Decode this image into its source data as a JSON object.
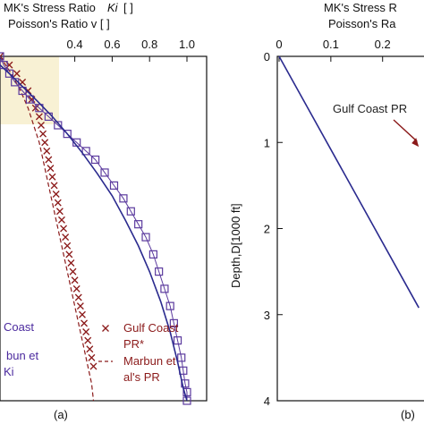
{
  "chart_data": [
    {
      "type": "line",
      "panel_label": "(a)",
      "title_lines": [
        "MK's Stress Ratio",
        "Ki",
        "[ ]",
        "Poisson's Ratio v [ ]"
      ],
      "x_ticks": [
        "0.4",
        "0.6",
        "0.8",
        "1.0"
      ],
      "x_tick_values": [
        0.4,
        0.6,
        0.8,
        1.0
      ],
      "xlim": [
        0.0,
        1.0
      ],
      "ylim": [
        0,
        4
      ],
      "grid": false,
      "series": [
        {
          "name": "Gulf Coast PR*",
          "color": "#8b1a1a",
          "marker": "x",
          "x": [
            0.0,
            0.05,
            0.09,
            0.12,
            0.15,
            0.17,
            0.19,
            0.21,
            0.22,
            0.23,
            0.24,
            0.25,
            0.26,
            0.27,
            0.28,
            0.29,
            0.3,
            0.31,
            0.32,
            0.33,
            0.34,
            0.35,
            0.36,
            0.37,
            0.38,
            0.39,
            0.4,
            0.41,
            0.42,
            0.43,
            0.44,
            0.45,
            0.46,
            0.47,
            0.48,
            0.49,
            0.5
          ],
          "y": [
            0.0,
            0.1,
            0.2,
            0.3,
            0.4,
            0.5,
            0.6,
            0.7,
            0.8,
            0.9,
            1.0,
            1.1,
            1.2,
            1.3,
            1.4,
            1.5,
            1.6,
            1.7,
            1.8,
            1.9,
            2.0,
            2.1,
            2.2,
            2.3,
            2.4,
            2.5,
            2.6,
            2.7,
            2.8,
            2.9,
            3.0,
            3.1,
            3.2,
            3.3,
            3.4,
            3.5,
            3.6
          ]
        },
        {
          "name": "Marbun et al's PR",
          "color": "#8b1a1a",
          "marker": "dash",
          "x": [
            0.0,
            0.06,
            0.11,
            0.15,
            0.18,
            0.21,
            0.23,
            0.25,
            0.27,
            0.29,
            0.31,
            0.33,
            0.35,
            0.37,
            0.39,
            0.41,
            0.43,
            0.45,
            0.47,
            0.49,
            0.5
          ],
          "y": [
            0.0,
            0.2,
            0.4,
            0.6,
            0.8,
            1.0,
            1.2,
            1.4,
            1.6,
            1.8,
            2.0,
            2.2,
            2.4,
            2.6,
            2.8,
            3.0,
            3.2,
            3.4,
            3.6,
            3.8,
            4.0
          ]
        },
        {
          "name": "Coast",
          "color": "#5b3a9e",
          "marker": "square",
          "x": [
            0.0,
            0.02,
            0.05,
            0.08,
            0.12,
            0.16,
            0.21,
            0.26,
            0.31,
            0.36,
            0.41,
            0.46,
            0.51,
            0.56,
            0.61,
            0.66,
            0.7,
            0.74,
            0.78,
            0.82,
            0.85,
            0.88,
            0.91,
            0.93,
            0.95,
            0.97,
            0.98,
            0.99,
            1.0,
            1.0
          ],
          "y": [
            0.0,
            0.1,
            0.2,
            0.3,
            0.4,
            0.5,
            0.6,
            0.7,
            0.8,
            0.9,
            1.0,
            1.1,
            1.2,
            1.35,
            1.5,
            1.65,
            1.8,
            1.95,
            2.1,
            2.3,
            2.5,
            2.7,
            2.9,
            3.1,
            3.3,
            3.5,
            3.65,
            3.8,
            3.9,
            4.0
          ]
        },
        {
          "name": "Marbun et al's Ki",
          "color": "#2a2a8e",
          "marker": "none",
          "x": [
            0.0,
            0.05,
            0.12,
            0.2,
            0.28,
            0.36,
            0.44,
            0.52,
            0.6,
            0.67,
            0.74,
            0.8,
            0.86,
            0.91,
            0.95,
            0.98,
            1.0
          ],
          "y": [
            0.1,
            0.2,
            0.35,
            0.52,
            0.7,
            0.9,
            1.12,
            1.36,
            1.62,
            1.9,
            2.2,
            2.5,
            2.85,
            3.2,
            3.55,
            3.85,
            4.0
          ]
        }
      ],
      "legend": [
        {
          "text": "Coast",
          "color": "#4b2a9e",
          "marker": "square"
        },
        {
          "text": "bun et",
          "color": "#4b2a9e",
          "marker": "none"
        },
        {
          "text": "Ki",
          "color": "#4b2a9e",
          "marker": "line"
        },
        {
          "text": "Gulf Coast",
          "color": "#8b1a1a",
          "marker": "x"
        },
        {
          "text": "PR*",
          "color": "#8b1a1a",
          "marker": "none"
        },
        {
          "text": "Marbun et",
          "color": "#8b1a1a",
          "marker": "dash"
        },
        {
          "text": "al's PR",
          "color": "#8b1a1a",
          "marker": "none"
        }
      ]
    },
    {
      "type": "line",
      "panel_label": "(b)",
      "title_lines": [
        "MK's Stress R",
        "Poisson's Ra"
      ],
      "x_ticks": [
        "0",
        "0.1",
        "0.2"
      ],
      "x_tick_values": [
        0.0,
        0.1,
        0.2
      ],
      "y_ticks": [
        "0",
        "1",
        "2",
        "3",
        "4"
      ],
      "y_tick_values": [
        0,
        1,
        2,
        3,
        4
      ],
      "ylabel": "Depth,D[1000 ft]",
      "xlim": [
        0.0,
        0.28
      ],
      "ylim": [
        0,
        4
      ],
      "grid": false,
      "series": [
        {
          "name": "",
          "color": "#2a2a8e",
          "marker": "none",
          "x": [
            0.0,
            0.27
          ],
          "y": [
            0.0,
            2.92
          ]
        }
      ],
      "annotation": {
        "text": "Gulf Coast PR",
        "color": "#222222",
        "arrow_color": "#8b1a1a",
        "target": [
          0.27,
          1.05
        ]
      }
    }
  ]
}
